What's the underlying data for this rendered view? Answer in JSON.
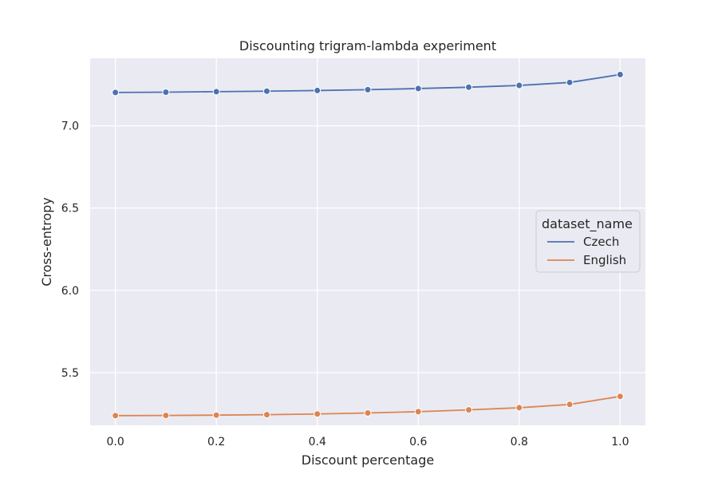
{
  "chart_data": {
    "type": "line",
    "title": "Discounting trigram-lambda experiment",
    "xlabel": "Discount percentage",
    "ylabel": "Cross-entropy",
    "x": [
      0.0,
      0.1,
      0.2,
      0.3,
      0.4,
      0.5,
      0.6,
      0.7,
      0.8,
      0.9,
      1.0
    ],
    "xlim": [
      -0.05,
      1.05
    ],
    "ylim": [
      5.18,
      7.41
    ],
    "x_ticks": [
      0.0,
      0.2,
      0.4,
      0.6,
      0.8,
      1.0
    ],
    "x_tick_labels": [
      "0.0",
      "0.2",
      "0.4",
      "0.6",
      "0.8",
      "1.0"
    ],
    "y_ticks": [
      5.5,
      6.0,
      6.5,
      7.0
    ],
    "y_tick_labels": [
      "5.5",
      "6.0",
      "6.5",
      "7.0"
    ],
    "grid": true,
    "legend": {
      "title": "dataset_name",
      "position": "right"
    },
    "series": [
      {
        "name": "Czech",
        "color": "#4c72b0",
        "values": [
          7.202,
          7.204,
          7.207,
          7.21,
          7.214,
          7.219,
          7.226,
          7.234,
          7.245,
          7.263,
          7.311
        ]
      },
      {
        "name": "English",
        "color": "#dd8452",
        "values": [
          5.239,
          5.24,
          5.242,
          5.245,
          5.249,
          5.255,
          5.263,
          5.274,
          5.287,
          5.307,
          5.356
        ]
      }
    ],
    "colors": {
      "plot_background": "#eaeaf2",
      "grid": "#ffffff",
      "legend_background": "#eaeaf2",
      "legend_border": "#cccccc"
    }
  }
}
